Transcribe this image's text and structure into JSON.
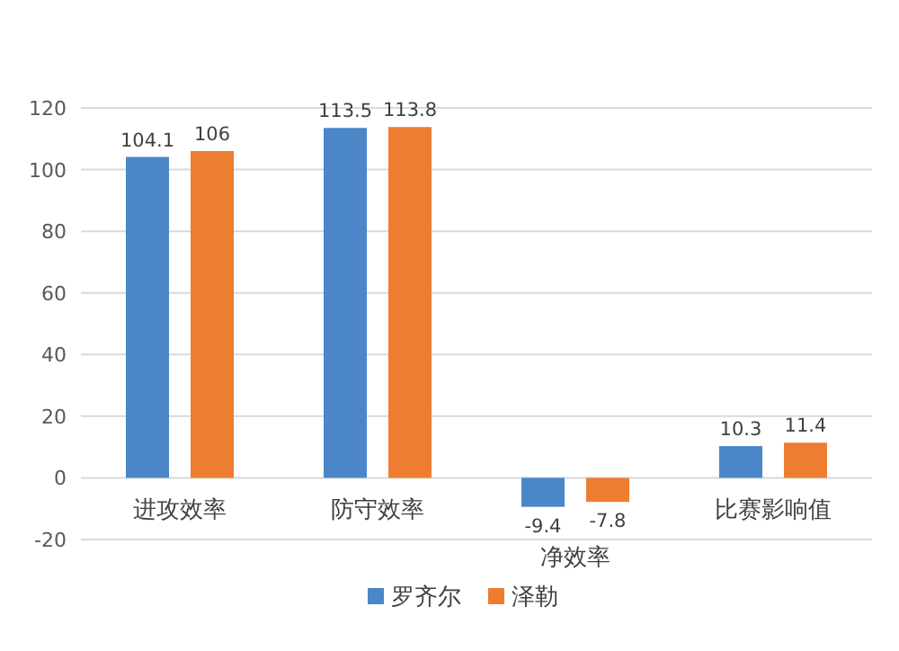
{
  "chart_data": {
    "type": "bar",
    "categories": [
      "进攻效率",
      "防守效率",
      "净效率",
      "比赛影响值"
    ],
    "series": [
      {
        "name": "罗齐尔",
        "color": "#4a86c8",
        "values": [
          104.1,
          113.5,
          -9.4,
          10.3
        ]
      },
      {
        "name": "泽勒",
        "color": "#ed7d31",
        "values": [
          106,
          113.8,
          -7.8,
          11.4
        ]
      }
    ],
    "ylim": [
      -20,
      120
    ],
    "yticks": [
      -20,
      0,
      20,
      40,
      60,
      80,
      100,
      120
    ],
    "grid": "y",
    "legend": "bottom",
    "data_labels": true
  }
}
